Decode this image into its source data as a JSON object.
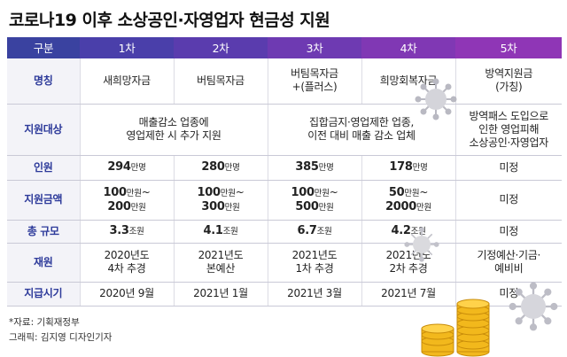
{
  "title": "코로나19 이후 소상공인·자영업자 현금성 지원",
  "header": {
    "label": "구분",
    "cols": [
      "1차",
      "2차",
      "3차",
      "4차",
      "5차"
    ]
  },
  "rows": {
    "name": {
      "label": "명칭",
      "c1": "새희망자금",
      "c2": "버팀목자금",
      "c3_line1": "버팀목자금",
      "c3_line2": "+(플러스)",
      "c4": "희망회복자금",
      "c5_line1": "방역지원금",
      "c5_line2": "(가칭)"
    },
    "target": {
      "label": "지원대상",
      "c12_line1": "매출감소 업종에",
      "c12_line2": "영업제한 시 추가 지원",
      "c34_line1": "집합금지·영업제한 업종,",
      "c34_line2": "이전 대비 매출 감소 업체",
      "c5_line1": "방역패스 도입으로",
      "c5_line2": "인한 영업피해",
      "c5_line3": "소상공인·자영업자"
    },
    "people": {
      "label": "인원",
      "unit": "만명",
      "c1": "294",
      "c2": "280",
      "c3": "385",
      "c4": "178",
      "c5": "미정"
    },
    "amount": {
      "label": "지원금액",
      "unit": "만원",
      "c1_a": "100",
      "c1_b": "200",
      "c2_a": "100",
      "c2_b": "300",
      "c3_a": "100",
      "c3_b": "500",
      "c4_a": "50",
      "c4_b": "2000",
      "c5": "미정"
    },
    "total": {
      "label": "총 규모",
      "unit": "조원",
      "c1": "3.3",
      "c2": "4.1",
      "c3": "6.7",
      "c4": "4.2",
      "c5": "미정"
    },
    "fund": {
      "label": "재원",
      "c1_line1": "2020년도",
      "c1_line2": "4차 추경",
      "c2_line1": "2021년도",
      "c2_line2": "본예산",
      "c3_line1": "2021년도",
      "c3_line2": "1차 추경",
      "c4_line1": "2021년도",
      "c4_line2": "2차 추경",
      "c5_line1": "기정예산·기금·",
      "c5_line2": "예비비"
    },
    "time": {
      "label": "지급시기",
      "c1": "2020년 9월",
      "c2": "2021년 1월",
      "c3": "2021년 3월",
      "c4": "2021년 7월",
      "c5": "미정"
    }
  },
  "notes": {
    "source": "*자료: 기획재정부",
    "graphic": "그래픽: 김지영 디자인기자"
  },
  "icons": {
    "virus": "virus-icon",
    "coins": "coin-stack-icon"
  },
  "colors": {
    "header_start": "#3a42a0",
    "header_end": "#8f36b6",
    "row_label": "#2d3a9a",
    "coin": "#f2b81c"
  }
}
